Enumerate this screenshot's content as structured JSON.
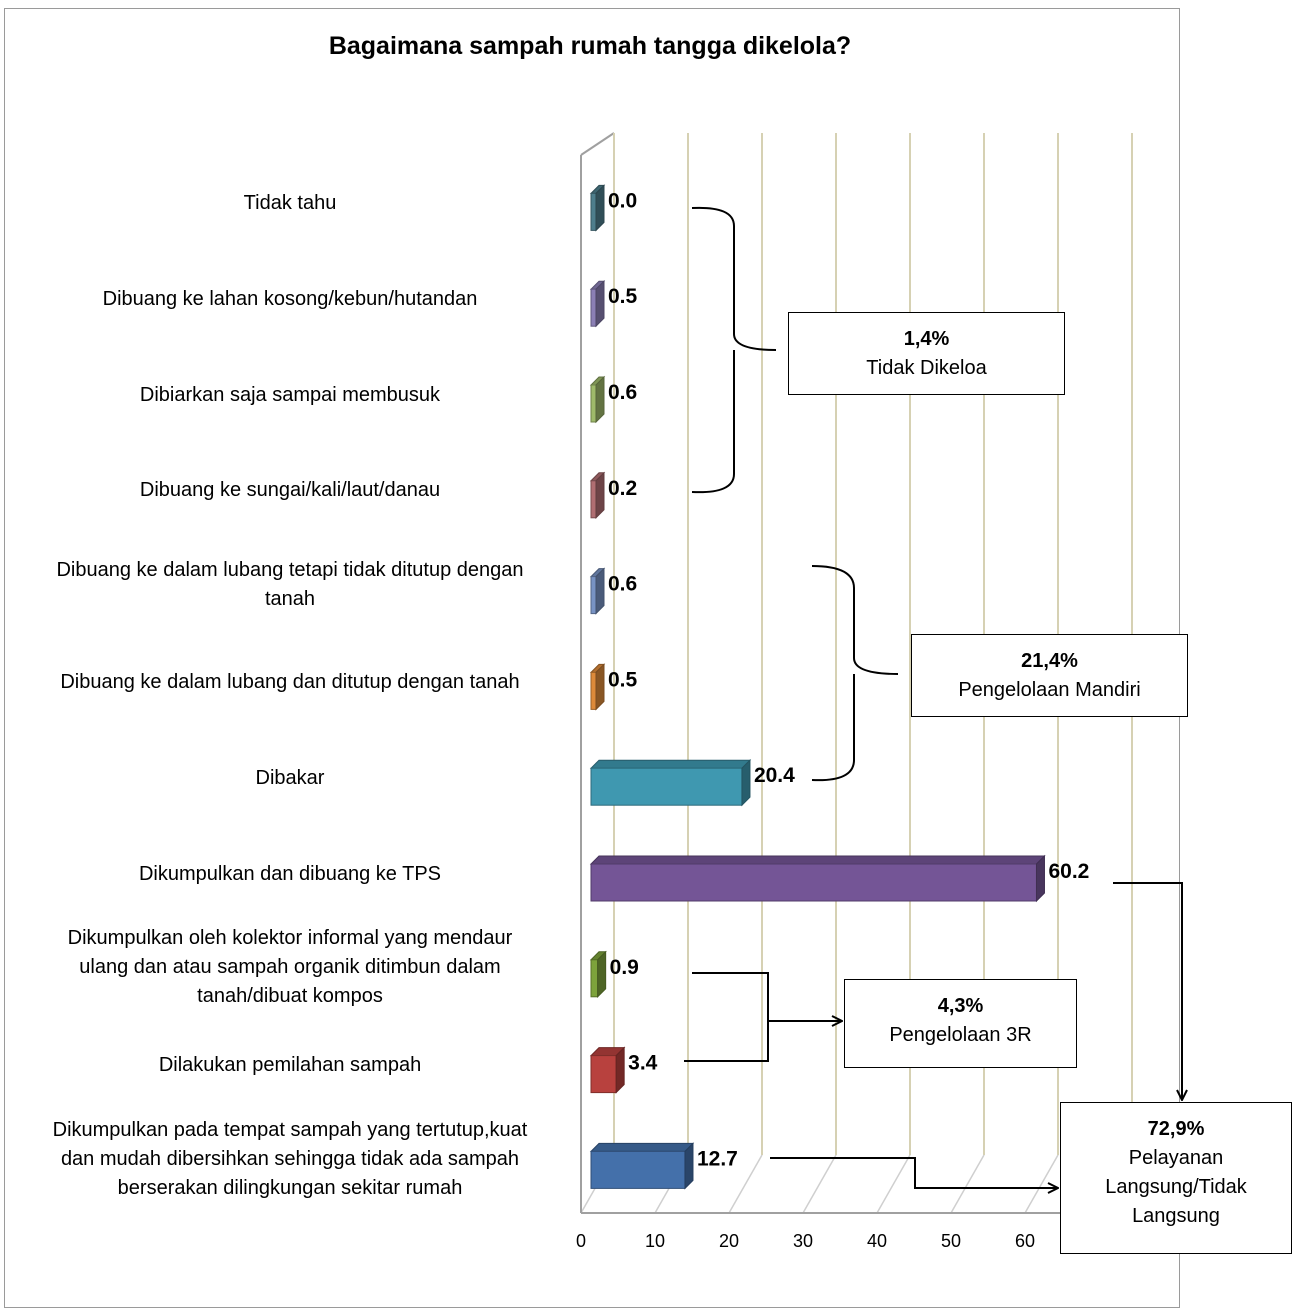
{
  "chart_data": {
    "type": "bar",
    "orientation": "horizontal",
    "title": "Bagaimana sampah rumah tangga dikelola?",
    "xlabel": "",
    "ylabel": "",
    "xlim": [
      0,
      60
    ],
    "xticks": [
      0,
      10,
      20,
      30,
      40,
      50,
      60
    ],
    "grid": true,
    "categories": [
      "Tidak tahu",
      "Dibuang ke lahan kosong/kebun/hutandan",
      "Dibiarkan saja sampai membusuk",
      "Dibuang ke sungai/kali/laut/danau",
      "Dibuang ke dalam lubang tetapi tidak ditutup dengan tanah",
      "Dibuang ke dalam lubang dan ditutup dengan tanah",
      "Dibakar",
      "Dikumpulkan dan dibuang ke TPS",
      "Dikumpulkan oleh kolektor informal yang mendaur ulang dan atau sampah organik ditimbun dalam tanah/dibuat kompos",
      "Dilakukan pemilahan sampah",
      "Dikumpulkan pada tempat sampah yang tertutup,kuat dan mudah dibersihkan  sehingga tidak ada sampah berserakan dilingkungan sekitar rumah"
    ],
    "values": [
      0.0,
      0.5,
      0.6,
      0.2,
      0.6,
      0.5,
      20.4,
      60.2,
      0.9,
      3.4,
      12.7
    ],
    "value_labels": [
      "0.0",
      "0.5",
      "0.6",
      "0.2",
      "0.6",
      "0.5",
      "20.4",
      "60.2",
      "0.9",
      "3.4",
      "12.7"
    ],
    "colors": [
      "#4e7e8c",
      "#8b7fb5",
      "#9fba6a",
      "#b06e72",
      "#7893c4",
      "#dd8a3a",
      "#3f98b0",
      "#745596",
      "#7da33b",
      "#b8413e",
      "#4470aa"
    ],
    "label_lines": [
      [
        "Tidak tahu"
      ],
      [
        "Dibuang ke lahan kosong/kebun/hutandan"
      ],
      [
        "Dibiarkan saja sampai membusuk"
      ],
      [
        "Dibuang ke sungai/kali/laut/danau"
      ],
      [
        "Dibuang ke dalam lubang tetapi tidak ditutup dengan",
        "tanah"
      ],
      [
        "Dibuang ke dalam lubang dan ditutup dengan tanah"
      ],
      [
        "Dibakar"
      ],
      [
        "Dikumpulkan dan dibuang ke TPS"
      ],
      [
        "Dikumpulkan oleh kolektor informal yang mendaur",
        "ulang dan atau sampah organik ditimbun dalam",
        "tanah/dibuat kompos"
      ],
      [
        "Dilakukan pemilahan sampah"
      ],
      [
        "Dikumpulkan pada tempat sampah yang tertutup,kuat",
        "dan mudah dibersihkan  sehingga tidak ada sampah",
        "berserakan dilingkungan sekitar rumah"
      ]
    ],
    "annotations": [
      {
        "pct": "1,4%",
        "text": "Tidak Dikeloa"
      },
      {
        "pct": "21,4%",
        "text": "Pengelolaan Mandiri"
      },
      {
        "pct": "4,3%",
        "text": "Pengelolaan 3R"
      },
      {
        "pct": "72,9%",
        "text": "Pelayanan Langsung/Tidak Langsung"
      }
    ]
  }
}
